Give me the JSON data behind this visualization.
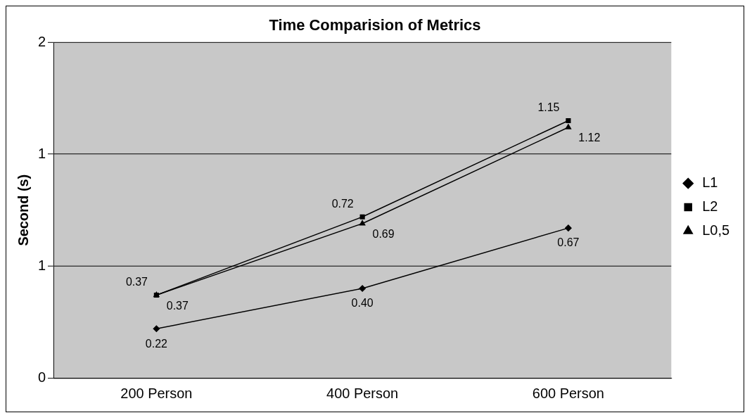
{
  "chart_data": {
    "type": "line",
    "title": "Time Comparision of Metrics",
    "ylabel": "Second (s)",
    "categories": [
      "200 Person",
      "400 Person",
      "600 Person"
    ],
    "series": [
      {
        "name": "L1",
        "color": "#000000",
        "marker": "diamond",
        "values": [
          0.22,
          0.4,
          0.67
        ],
        "value_labels": [
          "0.22",
          "0.40",
          "0.67"
        ]
      },
      {
        "name": "L2",
        "color": "#000000",
        "marker": "square",
        "values": [
          0.37,
          0.72,
          1.15
        ],
        "value_labels": [
          "0.37",
          "0.72",
          "1.15"
        ]
      },
      {
        "name": "L0,5",
        "color": "#000000",
        "marker": "triangle",
        "values": [
          0.37,
          0.69,
          1.12
        ],
        "value_labels": [
          "0.37",
          "0.69",
          "1.12"
        ]
      }
    ],
    "ylim": [
      0,
      1.5
    ],
    "yticks": [
      0,
      {
        "value": 0.5,
        "label": "1"
      },
      1,
      {
        "value": 1.5,
        "label": "2"
      }
    ],
    "grid": "y",
    "legend": "right"
  }
}
